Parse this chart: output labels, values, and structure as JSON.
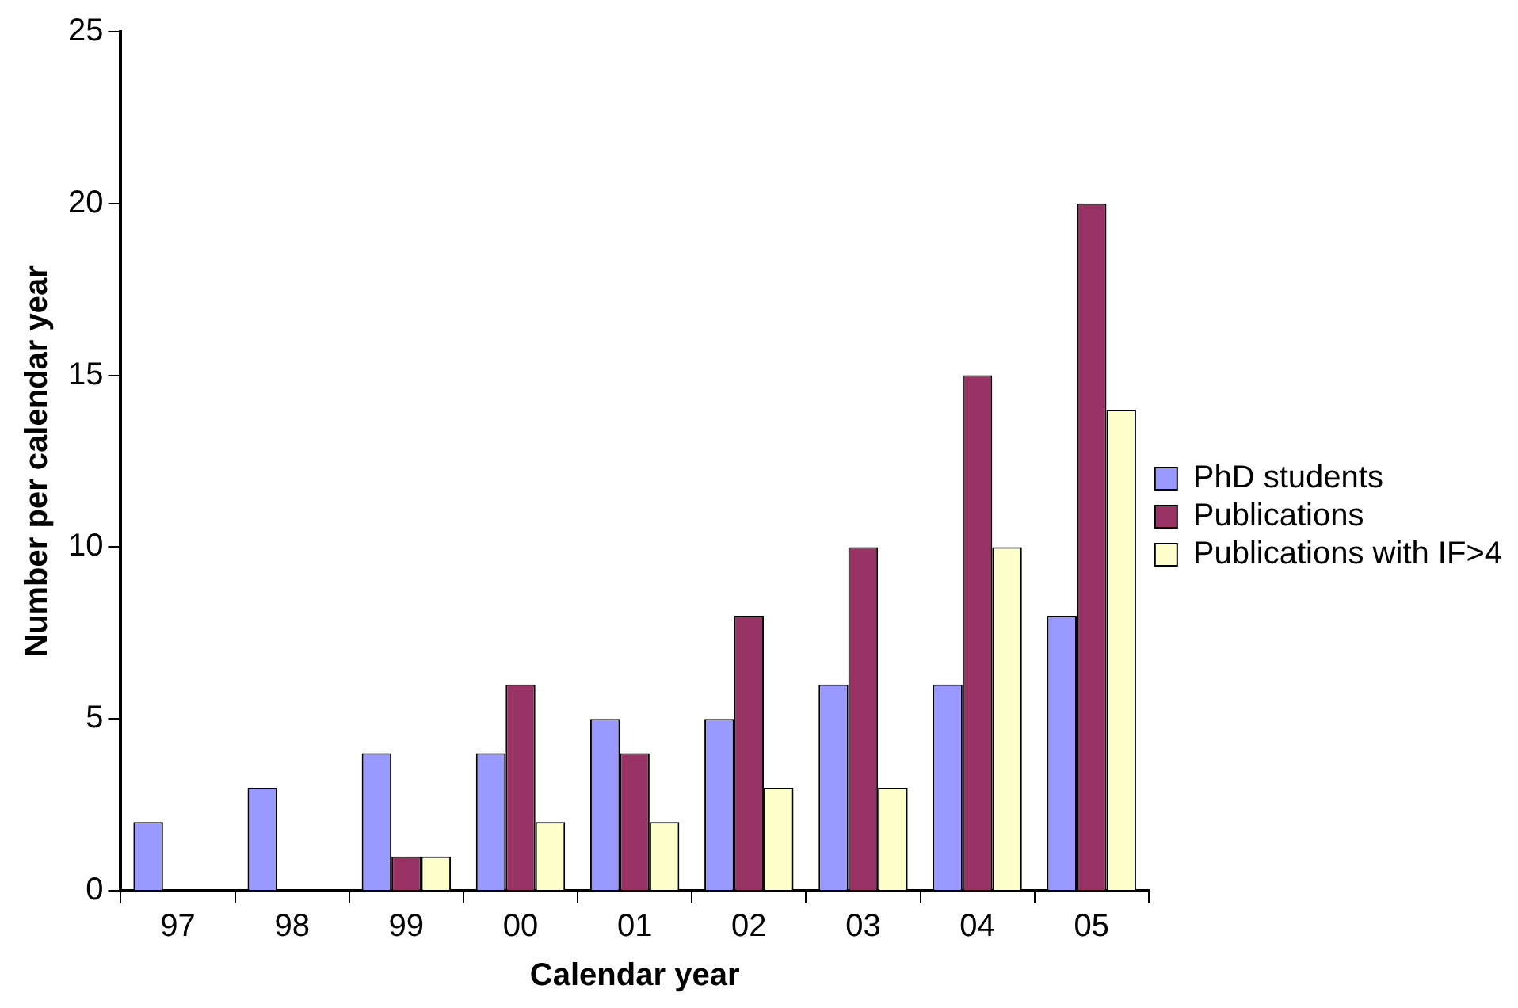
{
  "chart_data": {
    "type": "bar",
    "xlabel": "Calendar year",
    "ylabel": "Number per calendar year",
    "categories": [
      "97",
      "98",
      "99",
      "00",
      "01",
      "02",
      "03",
      "04",
      "05"
    ],
    "series": [
      {
        "name": "PhD students",
        "color": "#9999ff",
        "values": [
          2,
          3,
          4,
          4,
          5,
          5,
          6,
          6,
          8
        ]
      },
      {
        "name": "Publications",
        "color": "#993366",
        "values": [
          0,
          0,
          1,
          6,
          4,
          8,
          10,
          15,
          20
        ]
      },
      {
        "name": "Publications with IF>4",
        "color": "#ffffcc",
        "values": [
          0,
          0,
          1,
          2,
          2,
          3,
          3,
          10,
          14
        ]
      }
    ],
    "ylim": [
      0,
      25
    ],
    "yticks": [
      0,
      5,
      10,
      15,
      20,
      25
    ],
    "grid": false,
    "legend": "right"
  }
}
